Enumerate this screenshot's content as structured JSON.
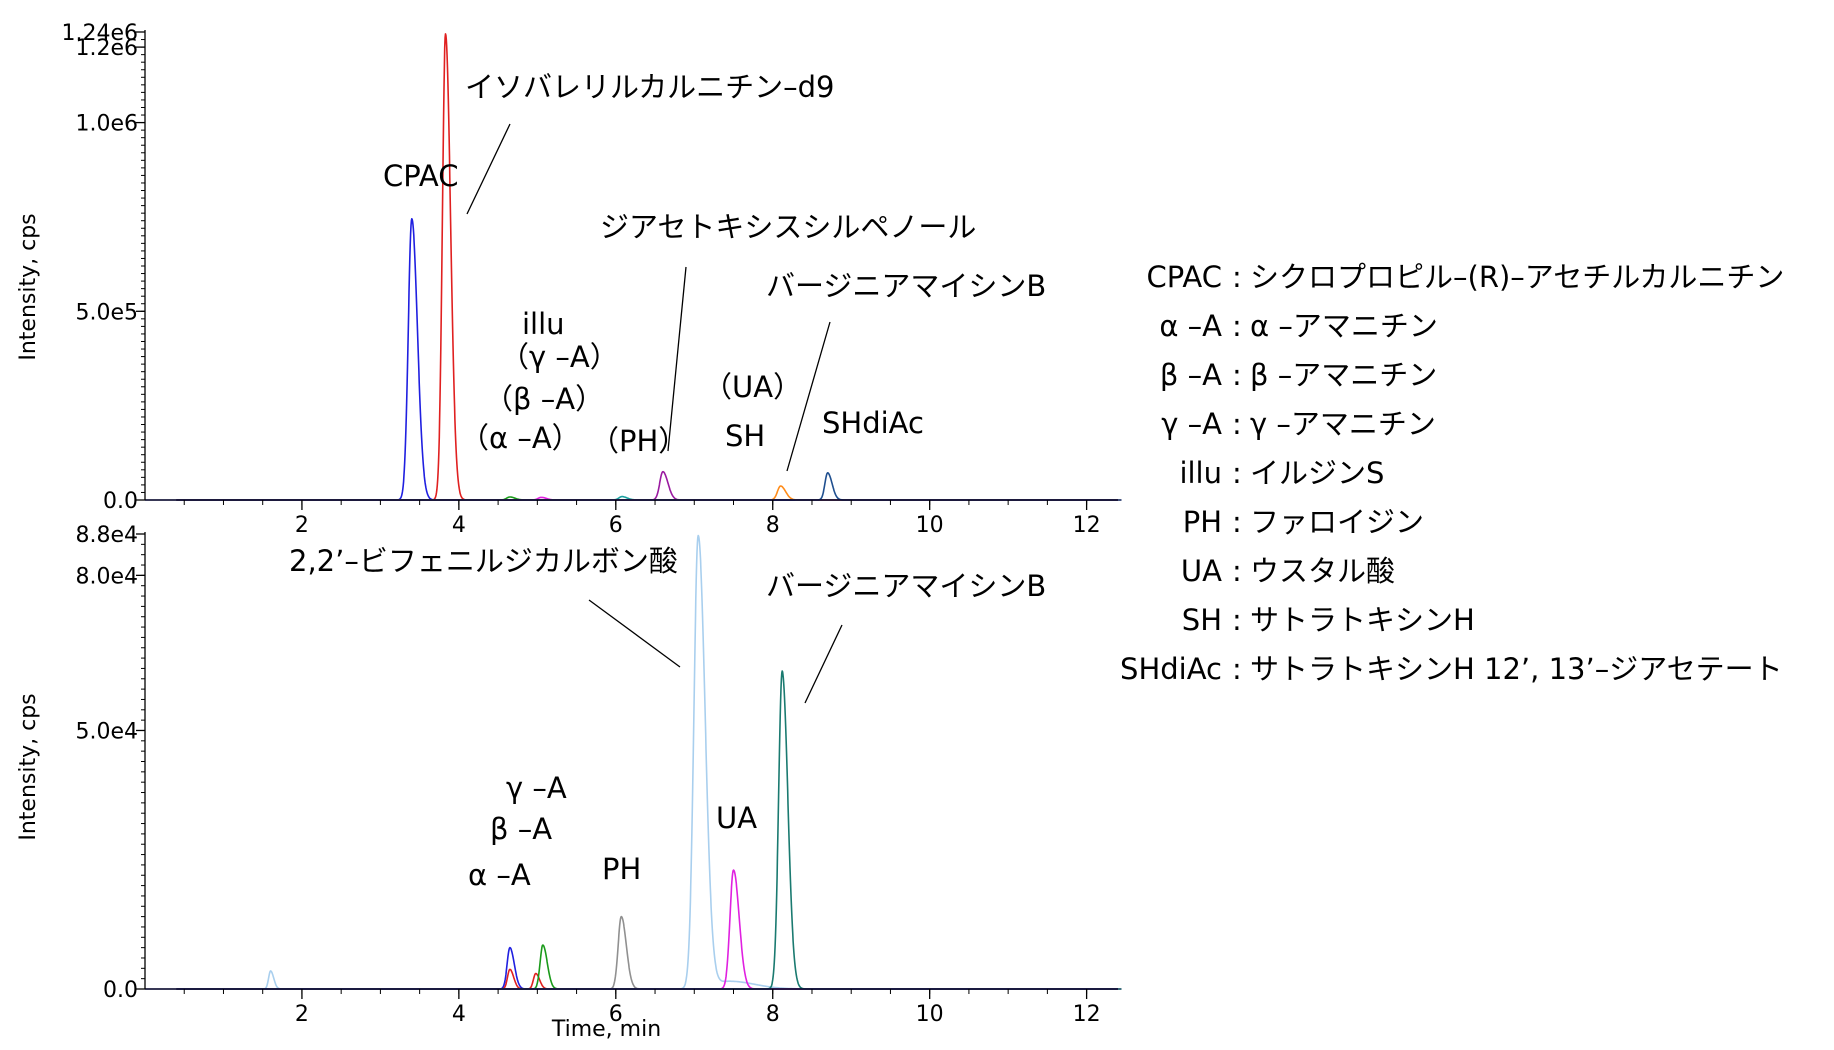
{
  "chart_data": [
    {
      "type": "line",
      "panel": "top",
      "xlabel": "",
      "ylabel": "Intensity, cps",
      "xlim": [
        0,
        12.4
      ],
      "ylim": [
        0,
        1240000
      ],
      "yticks": [
        {
          "value": 0,
          "label": "0.0"
        },
        {
          "value": 500000,
          "label": "5.0e5"
        },
        {
          "value": 1000000,
          "label": "1.0e6"
        },
        {
          "value": 1200000,
          "label": "1.2e6"
        },
        {
          "value": 1240000,
          "label": "1.24e6"
        }
      ],
      "xticks": [
        2,
        4,
        6,
        8,
        10,
        12
      ],
      "series": [
        {
          "color": "#1f1fe0",
          "peaks": [
            {
              "rt": 3.4,
              "height": 745000,
              "width": 0.045
            }
          ]
        },
        {
          "color": "#e02020",
          "peaks": [
            {
              "rt": 3.83,
              "height": 1235000,
              "width": 0.04
            }
          ]
        },
        {
          "color": "#1a9a1a",
          "peaks": [
            {
              "rt": 4.65,
              "height": 8000,
              "width": 0.04
            }
          ]
        },
        {
          "color": "#e020e0",
          "peaks": [
            {
              "rt": 5.05,
              "height": 7000,
              "width": 0.04
            }
          ]
        },
        {
          "color": "#1aa0a0",
          "peaks": [
            {
              "rt": 6.08,
              "height": 9000,
              "width": 0.04
            }
          ]
        },
        {
          "color": "#9a1aa0",
          "peaks": [
            {
              "rt": 6.6,
              "height": 75000,
              "width": 0.04
            }
          ]
        },
        {
          "color": "#ff8c1a",
          "peaks": [
            {
              "rt": 8.1,
              "height": 37000,
              "width": 0.04
            }
          ]
        },
        {
          "color": "#1f4f8f",
          "peaks": [
            {
              "rt": 8.7,
              "height": 72000,
              "width": 0.035
            }
          ]
        }
      ],
      "annotations": [
        {
          "text": "CPAC",
          "rt": 3.4
        },
        {
          "text": "イソバレリルカルニチン–d9",
          "rt": 3.83
        },
        {
          "text": "illu",
          "rt": 5.05
        },
        {
          "text": "（γ –A）",
          "rt": 5.05
        },
        {
          "text": "（β –A）",
          "rt": 4.85
        },
        {
          "text": "（α –A）",
          "rt": 4.65
        },
        {
          "text": "（PH）",
          "rt": 6.08
        },
        {
          "text": "ジアセトキシスシルペノール",
          "rt": 6.6
        },
        {
          "text": "（UA）",
          "rt": 7.5
        },
        {
          "text": "SH",
          "rt": 7.75
        },
        {
          "text": "バージニアマイシンB",
          "rt": 8.1
        },
        {
          "text": "SHdiAc",
          "rt": 8.7
        }
      ]
    },
    {
      "type": "line",
      "panel": "bottom",
      "xlabel": "Time, min",
      "ylabel": "Intensity, cps",
      "xlim": [
        0,
        12.4
      ],
      "ylim": [
        0,
        88000
      ],
      "yticks": [
        {
          "value": 0,
          "label": "0.0"
        },
        {
          "value": 50000,
          "label": "5.0e4"
        },
        {
          "value": 80000,
          "label": "8.0e4"
        },
        {
          "value": 88000,
          "label": "8.8e4"
        }
      ],
      "xticks": [
        2,
        4,
        6,
        8,
        10,
        12
      ],
      "series": [
        {
          "color": "#a9cfee",
          "peaks": [
            {
              "rt": 1.6,
              "height": 3500,
              "width": 0.025
            },
            {
              "rt": 7.05,
              "height": 87500,
              "width": 0.055
            },
            {
              "rt": 7.45,
              "height": 1500,
              "width": 0.2
            }
          ]
        },
        {
          "color": "#2020e0",
          "peaks": [
            {
              "rt": 4.65,
              "height": 8000,
              "width": 0.035
            }
          ]
        },
        {
          "color": "#e02020",
          "peaks": [
            {
              "rt": 4.65,
              "height": 3800,
              "width": 0.03
            },
            {
              "rt": 4.98,
              "height": 3000,
              "width": 0.03
            }
          ]
        },
        {
          "color": "#1a9a1a",
          "peaks": [
            {
              "rt": 5.07,
              "height": 8500,
              "width": 0.035
            }
          ]
        },
        {
          "color": "#909090",
          "peaks": [
            {
              "rt": 6.07,
              "height": 14000,
              "width": 0.04
            }
          ]
        },
        {
          "color": "#e020e0",
          "peaks": [
            {
              "rt": 7.5,
              "height": 23000,
              "width": 0.045
            }
          ]
        },
        {
          "color": "#1a7a70",
          "peaks": [
            {
              "rt": 8.12,
              "height": 61500,
              "width": 0.045
            }
          ]
        }
      ],
      "annotations": [
        {
          "text": "2,2’–ビフェニルジカルボン酸",
          "rt": 7.05
        },
        {
          "text": "バージニアマイシンB",
          "rt": 8.12
        },
        {
          "text": "γ –A",
          "rt": 5.07
        },
        {
          "text": "β –A",
          "rt": 4.85
        },
        {
          "text": "α –A",
          "rt": 4.65
        },
        {
          "text": "PH",
          "rt": 6.07
        },
        {
          "text": "UA",
          "rt": 7.5
        }
      ]
    }
  ],
  "legend": [
    {
      "abbr": "CPAC",
      "sep": ":",
      "name": "シクロプロピル–(R)–アセチルカルニチン"
    },
    {
      "abbr": "α –A",
      "sep": ":",
      "name": "α –アマニチン"
    },
    {
      "abbr": "β –A",
      "sep": ":",
      "name": "β –アマニチン"
    },
    {
      "abbr": "γ –A",
      "sep": ":",
      "name": "γ –アマニチン"
    },
    {
      "abbr": "illu",
      "sep": ":",
      "name": "イルジンS"
    },
    {
      "abbr": "PH",
      "sep": ":",
      "name": "ファロイジン"
    },
    {
      "abbr": "UA",
      "sep": ":",
      "name": "ウスタル酸"
    },
    {
      "abbr": "SH",
      "sep": ":",
      "name": "サトラトキシンH"
    },
    {
      "abbr": "SHdiAc",
      "sep": ":",
      "name": "サトラトキシンH 12’, 13’–ジアセテート"
    }
  ]
}
